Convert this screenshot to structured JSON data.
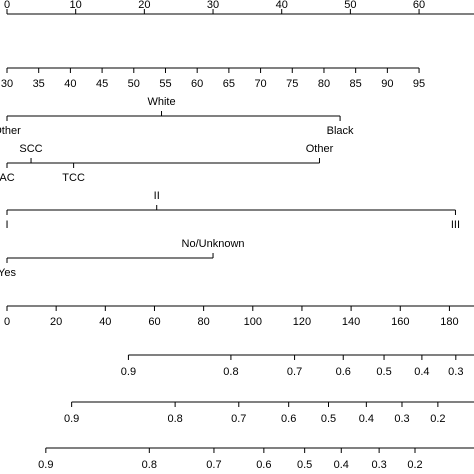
{
  "chart_data": [
    {
      "type": "scale",
      "xlim": [
        0,
        68
      ],
      "xticks": [
        0,
        10,
        20,
        30,
        40,
        50,
        60
      ]
    },
    {
      "type": "scale",
      "xlim": [
        30,
        95
      ],
      "point_lim": [
        0,
        60
      ],
      "xticks": [
        30,
        35,
        40,
        45,
        50,
        55,
        60,
        65,
        70,
        75,
        80,
        85,
        90,
        95
      ]
    },
    {
      "type": "categorical",
      "categories": [
        "Other",
        "White",
        "Black"
      ],
      "points": [
        0,
        22.5,
        48.5
      ]
    },
    {
      "type": "categorical",
      "categories": [
        "AC",
        "SCC",
        "TCC",
        "Other"
      ],
      "points": [
        0,
        3.5,
        9.7,
        45.5
      ]
    },
    {
      "type": "categorical",
      "categories": [
        "I",
        "II",
        "III"
      ],
      "points": [
        0,
        21.8,
        65.3
      ]
    },
    {
      "type": "categorical",
      "categories": [
        "Yes",
        "No/Unknown"
      ],
      "points": [
        0,
        30
      ]
    },
    {
      "type": "scale",
      "xlim": [
        0,
        190
      ],
      "xticks": [
        0,
        20,
        40,
        60,
        80,
        100,
        120,
        140,
        160,
        180
      ]
    },
    {
      "type": "probability",
      "ticks": [
        0.9,
        0.8,
        0.7,
        0.6,
        0.5,
        0.4,
        0.3
      ],
      "tick_points": [
        49.4,
        91.1,
        117,
        136.8,
        153.4,
        168.8,
        182.6
      ]
    },
    {
      "type": "probability",
      "ticks": [
        0.9,
        0.8,
        0.7,
        0.6,
        0.5,
        0.4,
        0.3,
        0.2
      ],
      "tick_points": [
        26.3,
        68.4,
        94.3,
        114.6,
        130.8,
        146.2,
        160.7,
        175.3
      ]
    },
    {
      "type": "probability",
      "ticks": [
        0.9,
        0.8,
        0.7,
        0.6,
        0.5,
        0.4,
        0.3,
        0.2
      ],
      "tick_points": [
        15.8,
        57.9,
        84.2,
        104.5,
        121.1,
        136,
        151.4,
        166
      ]
    }
  ]
}
